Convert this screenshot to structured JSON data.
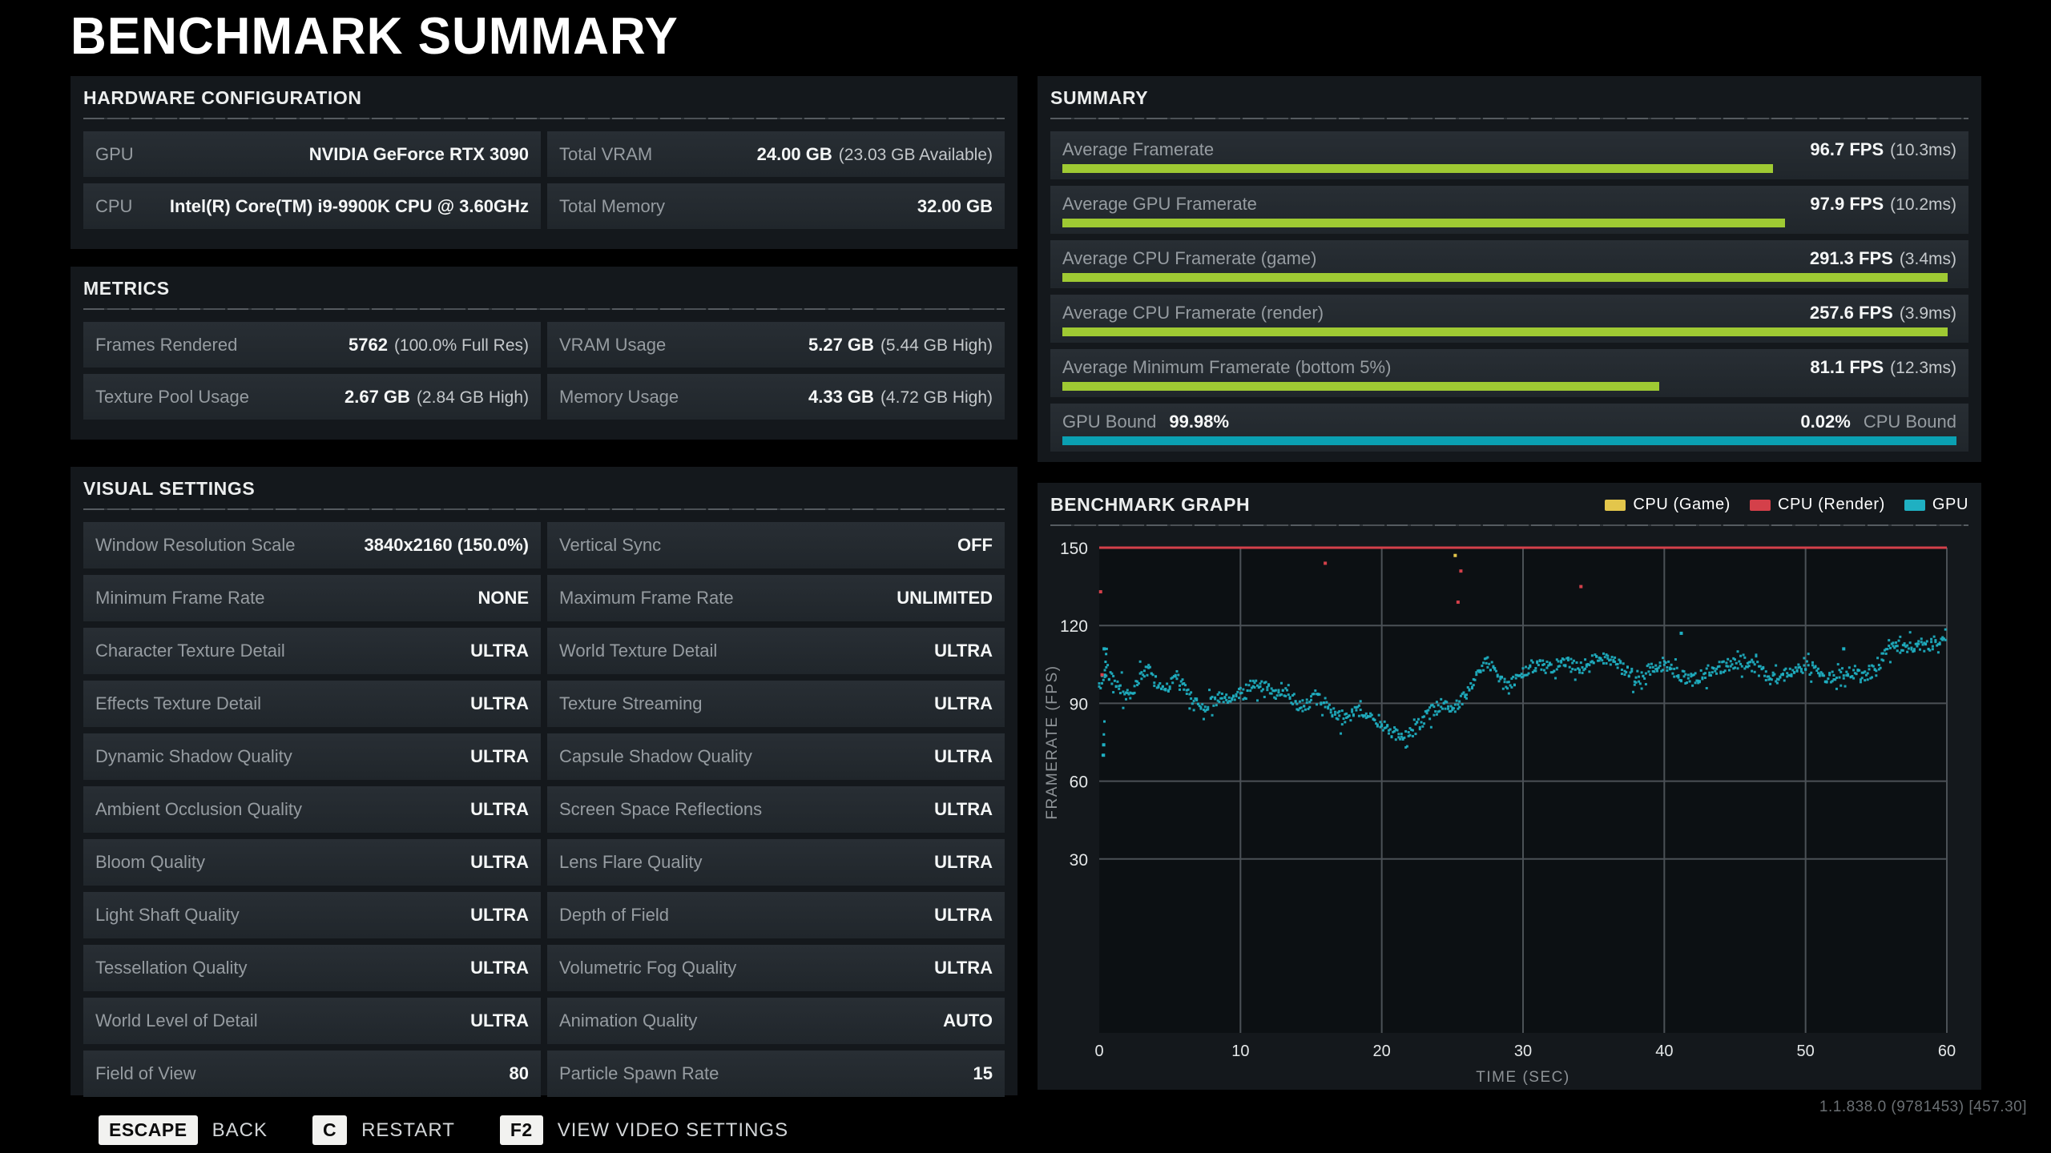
{
  "title": "BENCHMARK SUMMARY",
  "colors": {
    "background": "#000000",
    "panel": "#14181c",
    "row": "#232930",
    "label_gray": "#969ca1",
    "value_white": "#f5f7f7",
    "bar_green": "#9fca33",
    "bar_teal": "#0aa0b2",
    "legend_yellow": "#e3c64b",
    "legend_red": "#d4404a",
    "legend_teal": "#1fb0c2"
  },
  "hardware": {
    "header": "HARDWARE CONFIGURATION",
    "rows": [
      {
        "left": {
          "label": "GPU",
          "value": "NVIDIA GeForce RTX 3090",
          "extra": ""
        },
        "right": {
          "label": "Total VRAM",
          "value": "24.00 GB",
          "extra": "(23.03 GB Available)"
        }
      },
      {
        "left": {
          "label": "CPU",
          "value": "Intel(R) Core(TM) i9-9900K CPU @ 3.60GHz",
          "extra": ""
        },
        "right": {
          "label": "Total Memory",
          "value": "32.00 GB",
          "extra": ""
        }
      }
    ]
  },
  "metrics": {
    "header": "METRICS",
    "rows": [
      {
        "left": {
          "label": "Frames Rendered",
          "value": "5762",
          "extra": "(100.0% Full Res)"
        },
        "right": {
          "label": "VRAM Usage",
          "value": "5.27 GB",
          "extra": "(5.44 GB High)"
        }
      },
      {
        "left": {
          "label": "Texture Pool Usage",
          "value": "2.67 GB",
          "extra": "(2.84 GB High)"
        },
        "right": {
          "label": "Memory Usage",
          "value": "4.33 GB",
          "extra": "(4.72 GB High)"
        }
      }
    ]
  },
  "visual": {
    "header": "VISUAL SETTINGS",
    "rows": [
      {
        "left": {
          "label": "Window Resolution Scale",
          "value": "3840x2160 (150.0%)"
        },
        "right": {
          "label": "Vertical Sync",
          "value": "OFF"
        }
      },
      {
        "left": {
          "label": "Minimum Frame Rate",
          "value": "NONE"
        },
        "right": {
          "label": "Maximum Frame Rate",
          "value": "UNLIMITED"
        }
      },
      {
        "left": {
          "label": "Character Texture Detail",
          "value": "ULTRA"
        },
        "right": {
          "label": "World Texture Detail",
          "value": "ULTRA"
        }
      },
      {
        "left": {
          "label": "Effects Texture Detail",
          "value": "ULTRA"
        },
        "right": {
          "label": "Texture Streaming",
          "value": "ULTRA"
        }
      },
      {
        "left": {
          "label": "Dynamic Shadow Quality",
          "value": "ULTRA"
        },
        "right": {
          "label": "Capsule Shadow Quality",
          "value": "ULTRA"
        }
      },
      {
        "left": {
          "label": "Ambient Occlusion Quality",
          "value": "ULTRA"
        },
        "right": {
          "label": "Screen Space Reflections",
          "value": "ULTRA"
        }
      },
      {
        "left": {
          "label": "Bloom Quality",
          "value": "ULTRA"
        },
        "right": {
          "label": "Lens Flare Quality",
          "value": "ULTRA"
        }
      },
      {
        "left": {
          "label": "Light Shaft Quality",
          "value": "ULTRA"
        },
        "right": {
          "label": "Depth of Field",
          "value": "ULTRA"
        }
      },
      {
        "left": {
          "label": "Tessellation Quality",
          "value": "ULTRA"
        },
        "right": {
          "label": "Volumetric Fog Quality",
          "value": "ULTRA"
        }
      },
      {
        "left": {
          "label": "World Level of Detail",
          "value": "ULTRA"
        },
        "right": {
          "label": "Animation Quality",
          "value": "AUTO"
        }
      },
      {
        "left": {
          "label": "Field of View",
          "value": "80"
        },
        "right": {
          "label": "Particle Spawn Rate",
          "value": "15"
        }
      }
    ]
  },
  "summary": {
    "header": "SUMMARY",
    "rows": [
      {
        "label": "Average Framerate",
        "value": "96.7 FPS",
        "extra": "(10.3ms)",
        "bar_pct": 79.5,
        "bar_color": "#9fca33"
      },
      {
        "label": "Average GPU Framerate",
        "value": "97.9 FPS",
        "extra": "(10.2ms)",
        "bar_pct": 80.8,
        "bar_color": "#9fca33"
      },
      {
        "label": "Average CPU Framerate (game)",
        "value": "291.3 FPS",
        "extra": "(3.4ms)",
        "bar_pct": 99,
        "bar_color": "#9fca33"
      },
      {
        "label": "Average CPU Framerate (render)",
        "value": "257.6 FPS",
        "extra": "(3.9ms)",
        "bar_pct": 99,
        "bar_color": "#9fca33"
      },
      {
        "label": "Average Minimum Framerate (bottom 5%)",
        "value": "81.1 FPS",
        "extra": "(12.3ms)",
        "bar_pct": 66.8,
        "bar_color": "#9fca33"
      }
    ],
    "bound": {
      "left_label": "GPU Bound",
      "left_value": "99.98%",
      "right_value": "0.02%",
      "right_label": "CPU Bound",
      "bar_pct": 100,
      "bar_color": "#0aa0b2"
    }
  },
  "graph": {
    "header": "BENCHMARK GRAPH",
    "legend": [
      {
        "label": "CPU (Game)",
        "color": "#e3c64b"
      },
      {
        "label": "CPU (Render)",
        "color": "#d4404a"
      },
      {
        "label": "GPU",
        "color": "#1fb0c2"
      }
    ]
  },
  "chart_data": {
    "type": "scatter",
    "title": "BENCHMARK GRAPH",
    "xlabel": "TIME (SEC)",
    "ylabel": "FRAMERATE (FPS)",
    "xlim": [
      0,
      60
    ],
    "ylim": [
      0,
      150
    ],
    "xticks": [
      0,
      10,
      20,
      30,
      40,
      50,
      60
    ],
    "yticks": [
      150,
      120,
      90,
      60,
      30
    ],
    "grid": true,
    "legend_position": "top-right",
    "series": [
      {
        "name": "CPU (Game)",
        "color": "#e3c64b",
        "note": "off-scale above 150 FPS; only stray samples visible"
      },
      {
        "name": "CPU (Render)",
        "color": "#d4404a",
        "clip_line_fps": 150,
        "note": "clipped at chart max 150 FPS (solid red line)"
      },
      {
        "name": "GPU",
        "color": "#1fb0c2",
        "x_start": 0,
        "x_step": 0.5,
        "values": [
          96,
          103,
          99,
          96,
          93,
          95,
          101,
          103,
          98,
          96,
          97,
          100,
          96,
          92,
          90,
          89,
          91,
          92,
          91,
          92,
          94,
          96,
          98,
          97,
          96,
          94,
          95,
          93,
          90,
          89,
          91,
          92,
          89,
          87,
          85,
          84,
          86,
          87,
          85,
          83,
          82,
          80,
          78,
          76,
          78,
          81,
          84,
          87,
          89,
          90,
          88,
          90,
          94,
          99,
          103,
          106,
          102,
          98,
          96,
          99,
          102,
          104,
          105,
          104,
          103,
          105,
          106,
          105,
          103,
          105,
          107,
          108,
          107,
          105,
          104,
          102,
          100,
          101,
          103,
          104,
          105,
          103,
          101,
          100,
          99,
          100,
          102,
          103,
          104,
          105,
          105,
          106,
          105,
          104,
          102,
          101,
          100,
          101,
          102,
          103,
          104,
          103,
          101,
          100,
          100,
          101,
          102,
          101,
          100,
          101,
          103,
          108,
          113,
          112,
          111,
          112,
          113,
          112,
          113,
          115,
          117
        ]
      }
    ],
    "outliers": [
      {
        "color": "red",
        "t": 0.1,
        "fps": 133
      },
      {
        "color": "red",
        "t": 0.2,
        "fps": 101
      },
      {
        "color": "teal",
        "t": 0.3,
        "fps": 70
      },
      {
        "color": "teal",
        "t": 0.32,
        "fps": 74
      },
      {
        "color": "teal",
        "t": 0.35,
        "fps": 111
      },
      {
        "color": "red",
        "t": 16.0,
        "fps": 144
      },
      {
        "color": "yellow",
        "t": 25.2,
        "fps": 147
      },
      {
        "color": "red",
        "t": 25.4,
        "fps": 129
      },
      {
        "color": "red",
        "t": 25.6,
        "fps": 141
      },
      {
        "color": "red",
        "t": 34.1,
        "fps": 135
      },
      {
        "color": "teal",
        "t": 41.2,
        "fps": 117
      },
      {
        "color": "teal",
        "t": 52.7,
        "fps": 111
      }
    ]
  },
  "footer": {
    "keys": [
      {
        "key": "ESCAPE",
        "label": "BACK"
      },
      {
        "key": "C",
        "label": "RESTART"
      },
      {
        "key": "F2",
        "label": "VIEW VIDEO SETTINGS"
      }
    ],
    "version": "1.1.838.0 (9781453) [457.30]"
  }
}
